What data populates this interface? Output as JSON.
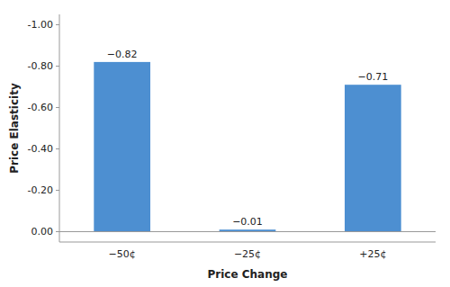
{
  "chart_data": {
    "type": "bar",
    "categories": [
      "−50¢",
      "−25¢",
      "+25¢"
    ],
    "values": [
      -0.82,
      -0.01,
      -0.71
    ],
    "value_labels": [
      "−0.82",
      "−0.01",
      "−0.71"
    ],
    "data_labels": true,
    "color": "#4d8fd1",
    "xlabel": "Price Change",
    "ylabel": "Price Elasticity",
    "ylim": [
      0.05,
      -1.05
    ],
    "yticks": [
      {
        "value": -1.0,
        "label": "-1.00"
      },
      {
        "value": -0.8,
        "label": "-0.80"
      },
      {
        "value": -0.6,
        "label": "-0.60"
      },
      {
        "value": -0.4,
        "label": "-0.40"
      },
      {
        "value": -0.2,
        "label": "-0.20"
      },
      {
        "value": 0.0,
        "label": "0.00"
      }
    ],
    "grid": false
  }
}
